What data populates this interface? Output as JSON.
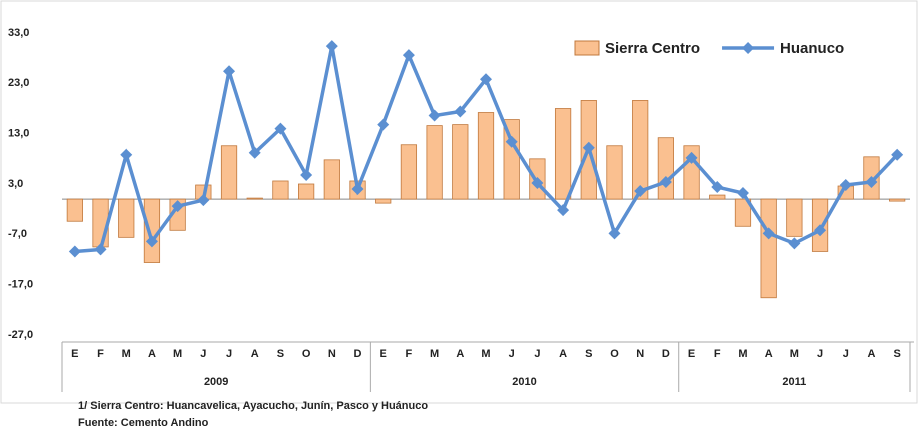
{
  "chart_data": {
    "type": "bar_line",
    "groups": [
      {
        "name": "2009",
        "categories": [
          "E",
          "F",
          "M",
          "A",
          "M",
          "J",
          "J",
          "A",
          "S",
          "O",
          "N",
          "D"
        ]
      },
      {
        "name": "2010",
        "categories": [
          "E",
          "F",
          "M",
          "A",
          "M",
          "J",
          "J",
          "A",
          "S",
          "O",
          "N",
          "D"
        ]
      },
      {
        "name": "2011",
        "categories": [
          "E",
          "F",
          "M",
          "A",
          "M",
          "J",
          "J",
          "A",
          "S"
        ]
      }
    ],
    "series": [
      {
        "name": "Sierra Centro",
        "type": "bar",
        "color": "#fac090",
        "stroke": "#c0783c",
        "values": [
          -4.4,
          -9.5,
          -7.6,
          -12.6,
          -6.2,
          2.8,
          10.6,
          0.2,
          3.6,
          3.0,
          7.8,
          3.6,
          -0.8,
          10.8,
          14.6,
          14.8,
          17.2,
          15.8,
          8.0,
          18.0,
          19.6,
          10.6,
          19.6,
          12.2,
          10.6,
          0.8,
          -5.4,
          -19.6,
          -7.4,
          -10.4,
          2.6,
          8.4,
          -0.4
        ]
      },
      {
        "name": "Huanuco",
        "type": "line",
        "color": "#5b8fd1",
        "values": [
          -10.4,
          -10.0,
          8.8,
          -8.4,
          -1.4,
          -0.2,
          25.4,
          9.2,
          14.0,
          4.8,
          30.4,
          2.0,
          14.8,
          28.6,
          16.6,
          17.4,
          23.8,
          11.4,
          3.2,
          -2.2,
          10.2,
          -6.8,
          1.6,
          3.4,
          8.2,
          2.4,
          1.2,
          -6.8,
          -8.8,
          -6.2,
          2.8,
          3.4,
          8.8
        ]
      }
    ],
    "ylim": [
      -27,
      33
    ],
    "yticks": [
      {
        "value": 33,
        "label": "33,0"
      },
      {
        "value": 23,
        "label": "23,0"
      },
      {
        "value": 13,
        "label": "13,0"
      },
      {
        "value": 3,
        "label": "3,0"
      },
      {
        "value": -7,
        "label": "-7,0"
      },
      {
        "value": -17,
        "label": "-17,0"
      },
      {
        "value": -27,
        "label": "-27,0"
      }
    ],
    "legend": "top-right",
    "notes": [
      "1/ Sierra Centro: Huancavelica,  Ayacucho, Junín, Pasco y Huánuco",
      "Fuente: Cemento Andino"
    ]
  }
}
